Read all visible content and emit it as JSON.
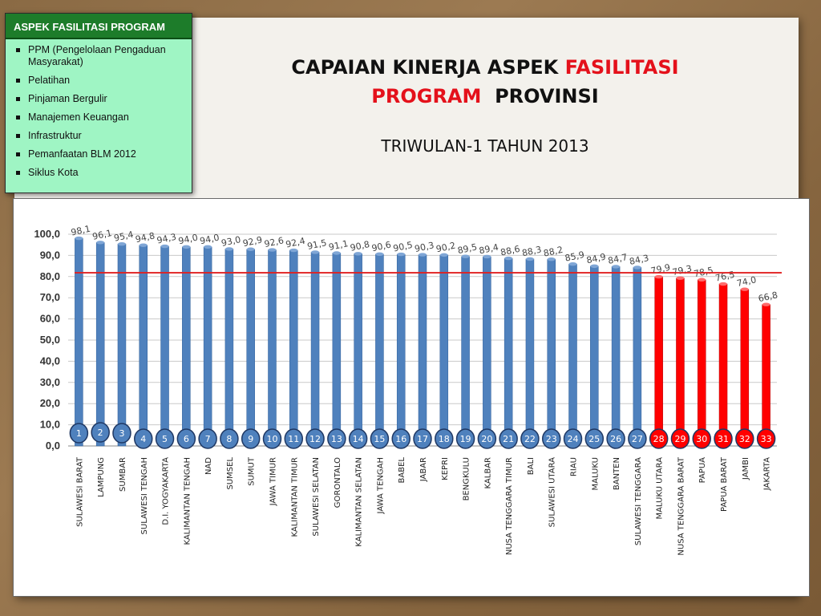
{
  "sidebar": {
    "title": "ASPEK FASILITASI PROGRAM",
    "items": [
      "PPM (Pengelolaan Pengaduan Masyarakat)",
      "Pelatihan",
      "Pinjaman Bergulir",
      "Manajemen Keuangan",
      "Infrastruktur",
      "Pemanfaatan BLM 2012",
      "Siklus Kota"
    ]
  },
  "header": {
    "title_part1": "CAPAIAN KINERJA ASPEK ",
    "title_part2": "FASILITASI PROGRAM",
    "title_part3": "PROVINSI",
    "subtitle": "TRIWULAN-1 TAHUN 2013"
  },
  "colors": {
    "bar_blue": "#4f81bd",
    "bar_red": "#ff0000",
    "target_line": "#e02020",
    "rank_blue_fill": "#4f81bd",
    "rank_red_fill": "#ff0000",
    "rank_border": "#1f3864"
  },
  "chart_data": {
    "type": "bar",
    "title": "",
    "xlabel": "",
    "ylabel": "",
    "ylim": [
      0,
      100
    ],
    "yticks": [
      "0,0",
      "10,0",
      "20,0",
      "30,0",
      "40,0",
      "50,0",
      "60,0",
      "70,0",
      "80,0",
      "90,0",
      "100,0"
    ],
    "target_line": 81.8,
    "grid": true,
    "categories": [
      "SULAWESI BARAT",
      "LAMPUNG",
      "SUMBAR",
      "SULAWESI TENGAH",
      "D.I. YOGYAKARTA",
      "KALIMANTAN TENGAH",
      "NAD",
      "SUMSEL",
      "SUMUT",
      "JAWA TIMUR",
      "KALIMANTAN TIMUR",
      "SULAWESI SELATAN",
      "GORONTALO",
      "KALIMANTAN SELATAN",
      "JAWA TENGAH",
      "BABEL",
      "JABAR",
      "KEPRI",
      "BENGKULU",
      "KALBAR",
      "NUSA TENGGARA  TIMUR",
      "BALI",
      "SULAWESI UTARA",
      "RIAU",
      "MALUKU",
      "BANTEN",
      "SULAWESI TENGGARA",
      "MALUKU UTARA",
      "NUSA TENGGARA  BARAT",
      "PAPUA",
      "PAPUA BARAT",
      "JAMBI",
      "JAKARTA"
    ],
    "values": [
      98.1,
      96.1,
      95.4,
      94.8,
      94.3,
      94.0,
      94.0,
      93.0,
      92.9,
      92.6,
      92.4,
      91.5,
      91.1,
      90.8,
      90.6,
      90.5,
      90.3,
      90.2,
      89.5,
      89.4,
      88.6,
      88.3,
      88.2,
      85.9,
      84.9,
      84.7,
      84.3,
      79.9,
      79.3,
      78.5,
      76.5,
      74.0,
      66.8
    ],
    "value_labels": [
      "98,1",
      "96,1",
      "95,4",
      "94,8",
      "94,3",
      "94,0",
      "94,0",
      "93,0",
      "92,9",
      "92,6",
      "92,4",
      "91,5",
      "91,1",
      "90,8",
      "90,6",
      "90,5",
      "90,3",
      "90,2",
      "89,5",
      "89,4",
      "88,6",
      "88,3",
      "88,2",
      "85,9",
      "84,9",
      "84,7",
      "84,3",
      "79,9",
      "79,3",
      "78,5",
      "76,5",
      "74,0",
      "66,8"
    ],
    "ranks": [
      "1",
      "2",
      "3",
      "4",
      "5",
      "6",
      "7",
      "8",
      "9",
      "10",
      "11",
      "12",
      "13",
      "14",
      "15",
      "16",
      "17",
      "18",
      "19",
      "20",
      "21",
      "22",
      "23",
      "24",
      "25",
      "26",
      "27",
      "28",
      "29",
      "30",
      "31",
      "32",
      "33"
    ],
    "highlight": [
      false,
      false,
      false,
      false,
      false,
      false,
      false,
      false,
      false,
      false,
      false,
      false,
      false,
      false,
      false,
      false,
      false,
      false,
      false,
      false,
      false,
      false,
      false,
      false,
      false,
      false,
      false,
      true,
      true,
      true,
      true,
      true,
      true
    ]
  }
}
